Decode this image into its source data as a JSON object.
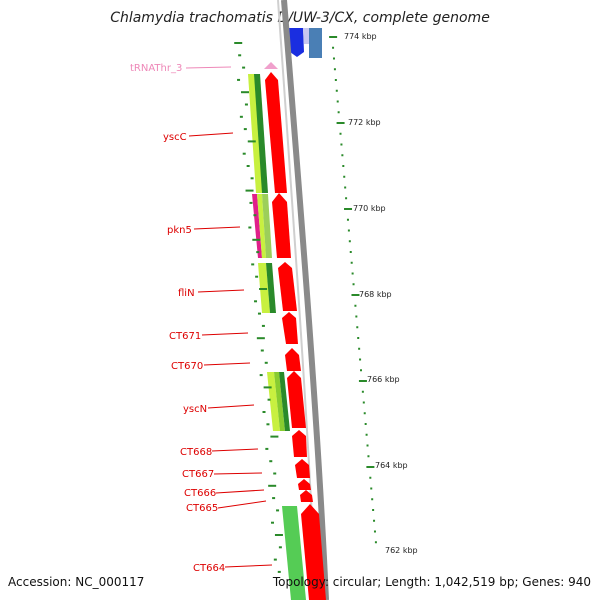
{
  "title": "Chlamydia trachomatis D/UW-3/CX, complete genome",
  "footer": {
    "accession": "Accession: NC_000117",
    "summary": "Topology: circular; Length: 1,042,519 bp; Genes: 940"
  },
  "colors": {
    "cds": "#ff0000",
    "rna": "#f0a0cc",
    "cog_green": "#55cc55",
    "cog_lime": "#c8f040",
    "cog_dark": "#2a8a2a",
    "cog_magenta": "#e0208a",
    "backbone": "#8a8a8a",
    "gc_blue": "#1a2ee0",
    "gc_steel": "#4a7fb5",
    "label_red": "#dd0000",
    "label_pink": "#ee88b8"
  },
  "scale_labels": [
    "774 kbp",
    "772 kbp",
    "770 kbp",
    "768 kbp",
    "766 kbp",
    "764 kbp",
    "762 kbp"
  ],
  "features": [
    {
      "name": "tRNAThr_3",
      "type": "rna"
    },
    {
      "name": "yscC",
      "type": "cds"
    },
    {
      "name": "pkn5",
      "type": "cds"
    },
    {
      "name": "fliN",
      "type": "cds"
    },
    {
      "name": "CT671",
      "type": "cds"
    },
    {
      "name": "CT670",
      "type": "cds"
    },
    {
      "name": "yscN",
      "type": "cds"
    },
    {
      "name": "CT668",
      "type": "cds"
    },
    {
      "name": "CT667",
      "type": "cds"
    },
    {
      "name": "CT666",
      "type": "cds"
    },
    {
      "name": "CT665",
      "type": "cds"
    },
    {
      "name": "CT664",
      "type": "cds"
    }
  ]
}
